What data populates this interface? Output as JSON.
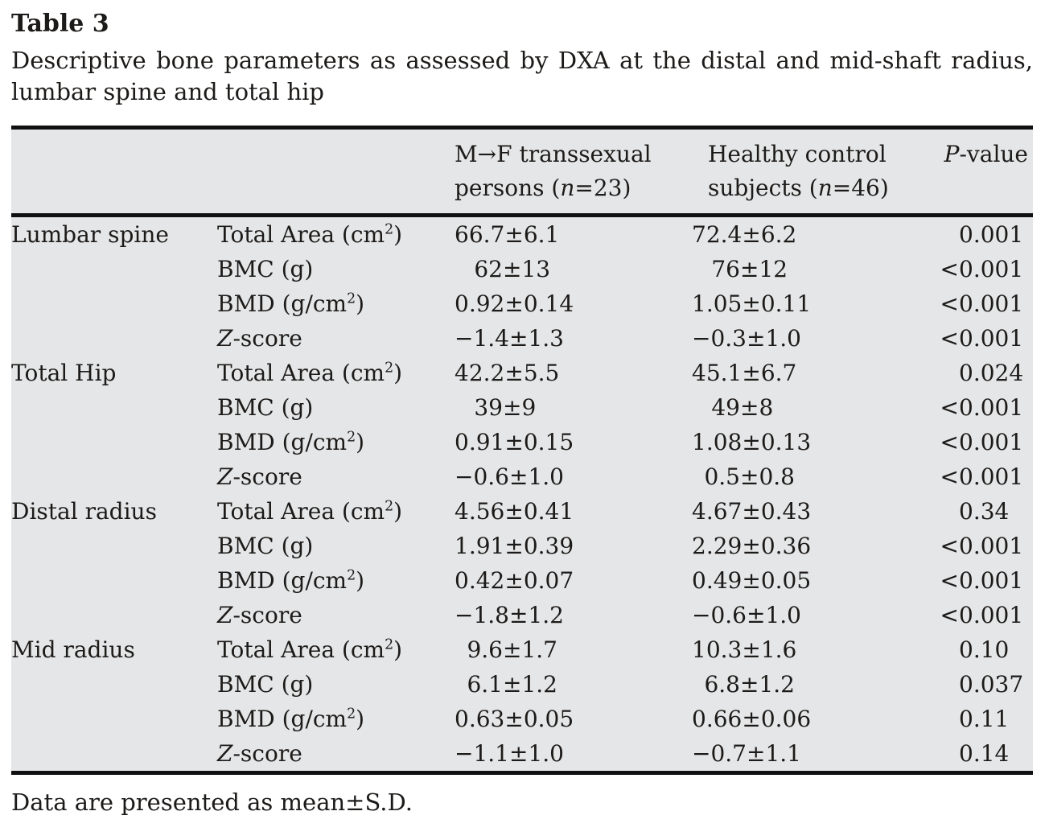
{
  "colors": {
    "page_bg": "#ffffff",
    "table_bg": "#e5e6e7",
    "text": "#1d1b19",
    "rule": "#101010"
  },
  "title": "Table 3",
  "caption_lines": [
    "Descriptive bone parameters as assessed by DXA at the distal and mid-shaft radius,",
    "lumbar spine and total hip"
  ],
  "footnote": "Data are presented as mean±S.D.",
  "table": {
    "headers": {
      "group1_lines": [
        "M→F transsexual",
        [
          {
            "t": "persons ("
          },
          {
            "t": "n",
            "i": true
          },
          {
            "t": "=23)"
          }
        ]
      ],
      "group2_lines": [
        "Healthy control",
        [
          {
            "t": "subjects ("
          },
          {
            "t": "n",
            "i": true
          },
          {
            "t": "=46)"
          }
        ]
      ],
      "pvalue": [
        {
          "t": "P",
          "i": true
        },
        {
          "t": "-value"
        }
      ]
    },
    "sections": [
      {
        "site": "Lumbar spine",
        "rows": [
          {
            "param": [
              {
                "t": "Total Area (cm"
              },
              {
                "t": "2",
                "sup": true
              },
              {
                "t": ")"
              }
            ],
            "g1": "66.7±6.1",
            "g2": "72.4±6.2",
            "p": "0.001"
          },
          {
            "param": "BMC (g)",
            "g1": "62±13",
            "g2": "76±12",
            "p": "<0.001"
          },
          {
            "param": [
              {
                "t": "BMD (g/cm"
              },
              {
                "t": "2",
                "sup": true
              },
              {
                "t": ")"
              }
            ],
            "g1": "0.92±0.14",
            "g2": "1.05±0.11",
            "p": "<0.001"
          },
          {
            "param": [
              {
                "t": "Z",
                "i": true
              },
              {
                "t": "-score"
              }
            ],
            "g1": "−1.4±1.3",
            "g2": "−0.3±1.0",
            "p": "<0.001"
          }
        ]
      },
      {
        "site": "Total Hip",
        "rows": [
          {
            "param": [
              {
                "t": "Total Area (cm"
              },
              {
                "t": "2",
                "sup": true
              },
              {
                "t": ")"
              }
            ],
            "g1": "42.2±5.5",
            "g2": "45.1±6.7",
            "p": "0.024"
          },
          {
            "param": "BMC (g)",
            "g1": "39±9",
            "g2": "49±8",
            "p": "<0.001"
          },
          {
            "param": [
              {
                "t": "BMD (g/cm"
              },
              {
                "t": "2",
                "sup": true
              },
              {
                "t": ")"
              }
            ],
            "g1": "0.91±0.15",
            "g2": "1.08±0.13",
            "p": "<0.001"
          },
          {
            "param": [
              {
                "t": "Z",
                "i": true
              },
              {
                "t": "-score"
              }
            ],
            "g1": "−0.6±1.0",
            "g2": "0.5±0.8",
            "p": "<0.001"
          }
        ]
      },
      {
        "site": "Distal radius",
        "rows": [
          {
            "param": [
              {
                "t": "Total Area (cm"
              },
              {
                "t": "2",
                "sup": true
              },
              {
                "t": ")"
              }
            ],
            "g1": "4.56±0.41",
            "g2": "4.67±0.43",
            "p": "0.34"
          },
          {
            "param": "BMC (g)",
            "g1": "1.91±0.39",
            "g2": "2.29±0.36",
            "p": "<0.001"
          },
          {
            "param": [
              {
                "t": "BMD (g/cm"
              },
              {
                "t": "2",
                "sup": true
              },
              {
                "t": ")"
              }
            ],
            "g1": "0.42±0.07",
            "g2": "0.49±0.05",
            "p": "<0.001"
          },
          {
            "param": [
              {
                "t": "Z",
                "i": true
              },
              {
                "t": "-score"
              }
            ],
            "g1": "−1.8±1.2",
            "g2": "−0.6±1.0",
            "p": "<0.001"
          }
        ]
      },
      {
        "site": "Mid radius",
        "rows": [
          {
            "param": [
              {
                "t": "Total Area (cm"
              },
              {
                "t": "2",
                "sup": true
              },
              {
                "t": ")"
              }
            ],
            "g1": "9.6±1.7",
            "g2": "10.3±1.6",
            "p": "0.10"
          },
          {
            "param": "BMC (g)",
            "g1": "6.1±1.2",
            "g2": "6.8±1.2",
            "p": "0.037"
          },
          {
            "param": [
              {
                "t": "BMD (g/cm"
              },
              {
                "t": "2",
                "sup": true
              },
              {
                "t": ")"
              }
            ],
            "g1": "0.63±0.05",
            "g2": "0.66±0.06",
            "p": "0.11"
          },
          {
            "param": [
              {
                "t": "Z",
                "i": true
              },
              {
                "t": "-score"
              }
            ],
            "g1": "−1.1±1.0",
            "g2": "−0.7±1.1",
            "p": "0.14"
          }
        ]
      }
    ]
  }
}
